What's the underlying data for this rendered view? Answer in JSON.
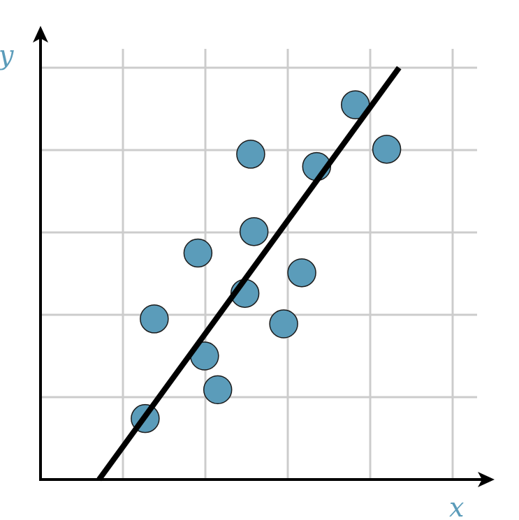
{
  "chart_data": {
    "type": "scatter",
    "title": "",
    "xlabel": "x",
    "ylabel": "y",
    "xlim": [
      0,
      5.3
    ],
    "ylim": [
      0,
      5.2
    ],
    "grid": true,
    "legend": "none",
    "series": [
      {
        "values": [
          {
            "x": 1.27,
            "y": 0.74
          },
          {
            "x": 1.38,
            "y": 1.95
          },
          {
            "x": 1.91,
            "y": 2.75
          },
          {
            "x": 1.99,
            "y": 1.5
          },
          {
            "x": 2.15,
            "y": 1.09
          },
          {
            "x": 2.48,
            "y": 2.26
          },
          {
            "x": 2.55,
            "y": 3.95
          },
          {
            "x": 2.59,
            "y": 3.01
          },
          {
            "x": 2.95,
            "y": 1.89
          },
          {
            "x": 3.17,
            "y": 2.51
          },
          {
            "x": 3.35,
            "y": 3.8
          },
          {
            "x": 3.82,
            "y": 4.55
          },
          {
            "x": 4.2,
            "y": 4.01
          }
        ]
      }
    ],
    "trendline": {
      "x1": 0.71,
      "y1": 0.0,
      "x2": 4.35,
      "y2": 5.0
    }
  },
  "colors": {
    "point_fill": "#5b9cba",
    "point_stroke": "#1a1a1a",
    "grid": "#cccccc",
    "axis": "#000000",
    "label": "#5b9cba",
    "trendline": "#000000"
  }
}
